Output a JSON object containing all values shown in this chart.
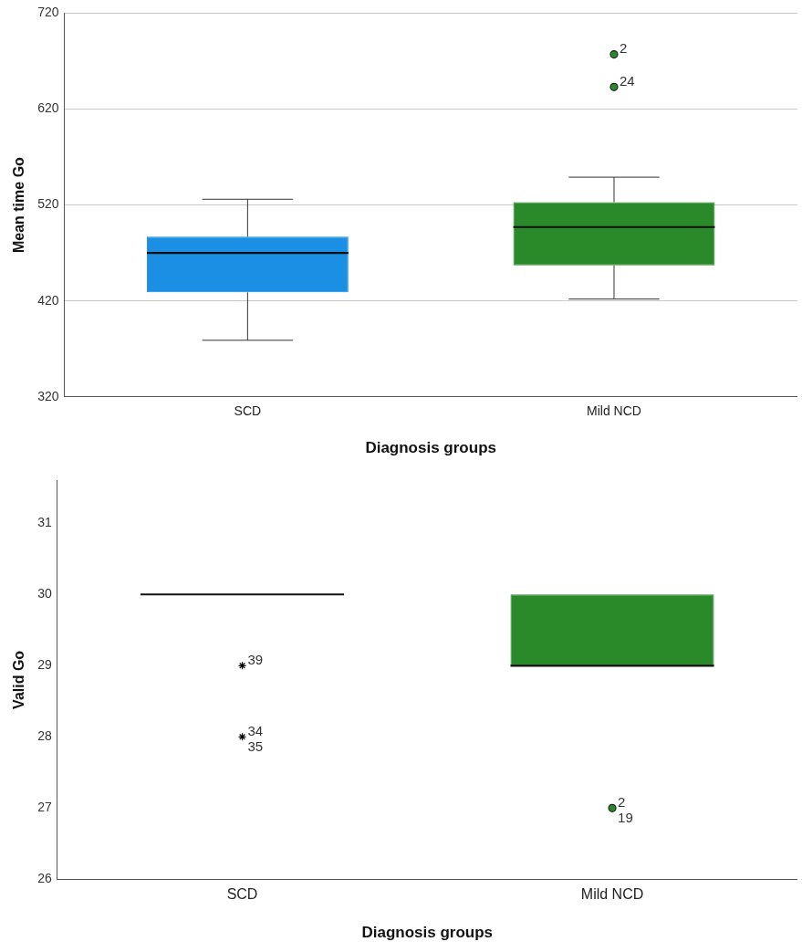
{
  "chart_data": [
    {
      "type": "box",
      "ylabel": "Mean time Go",
      "xlabel": "Diagnosis groups",
      "categories": [
        "SCD",
        "Mild NCD"
      ],
      "colors": [
        "#1a8fe3",
        "#2a8a2a"
      ],
      "boxes": [
        {
          "low": 379,
          "q1": 429,
          "median": 470,
          "q3": 487,
          "high": 526
        },
        {
          "low": 422,
          "q1": 457,
          "median": 497,
          "q3": 523,
          "high": 549
        }
      ],
      "series": [
        {
          "type": "scatter",
          "marker": "circle",
          "color": "#2a8a2a",
          "x": [
            "Mild NCD",
            "Mild NCD"
          ],
          "values": [
            677,
            643
          ]
        }
      ],
      "ylim": [
        320,
        720
      ],
      "yticks": [
        320,
        420,
        520,
        620,
        720
      ],
      "grid": "y",
      "annotations": [
        {
          "text": "2",
          "x": "Mild NCD",
          "y": 677
        },
        {
          "text": "24",
          "x": "Mild NCD",
          "y": 643
        }
      ]
    },
    {
      "type": "box",
      "ylabel": "Valid Go",
      "xlabel": "Diagnosis groups",
      "categories": [
        "SCD",
        "Mild NCD"
      ],
      "colors": [
        "#111111",
        "#2a8a2a"
      ],
      "boxes": [
        {
          "low": 30,
          "q1": 30,
          "median": 30,
          "q3": 30,
          "high": 30
        },
        {
          "low": 29,
          "q1": 29,
          "median": 29,
          "q3": 30,
          "high": 30
        }
      ],
      "series": [
        {
          "type": "scatter",
          "marker": "cross",
          "color": "#000000",
          "x": [
            "SCD",
            "SCD"
          ],
          "values": [
            29,
            28
          ]
        },
        {
          "type": "scatter",
          "marker": "circle",
          "color": "#2a8a2a",
          "x": [
            "Mild NCD"
          ],
          "values": [
            27
          ]
        }
      ],
      "ylim": [
        26,
        31.6
      ],
      "yticks": [
        26,
        27,
        28,
        29,
        30,
        31
      ],
      "grid": false,
      "annotations": [
        {
          "text": "39",
          "x": "SCD",
          "y": 29
        },
        {
          "text": "34",
          "x": "SCD",
          "y": 28
        },
        {
          "text": "35",
          "x": "SCD",
          "y": 28
        },
        {
          "text": "2",
          "x": "Mild NCD",
          "y": 27
        },
        {
          "text": "19",
          "x": "Mild NCD",
          "y": 27
        }
      ]
    }
  ]
}
